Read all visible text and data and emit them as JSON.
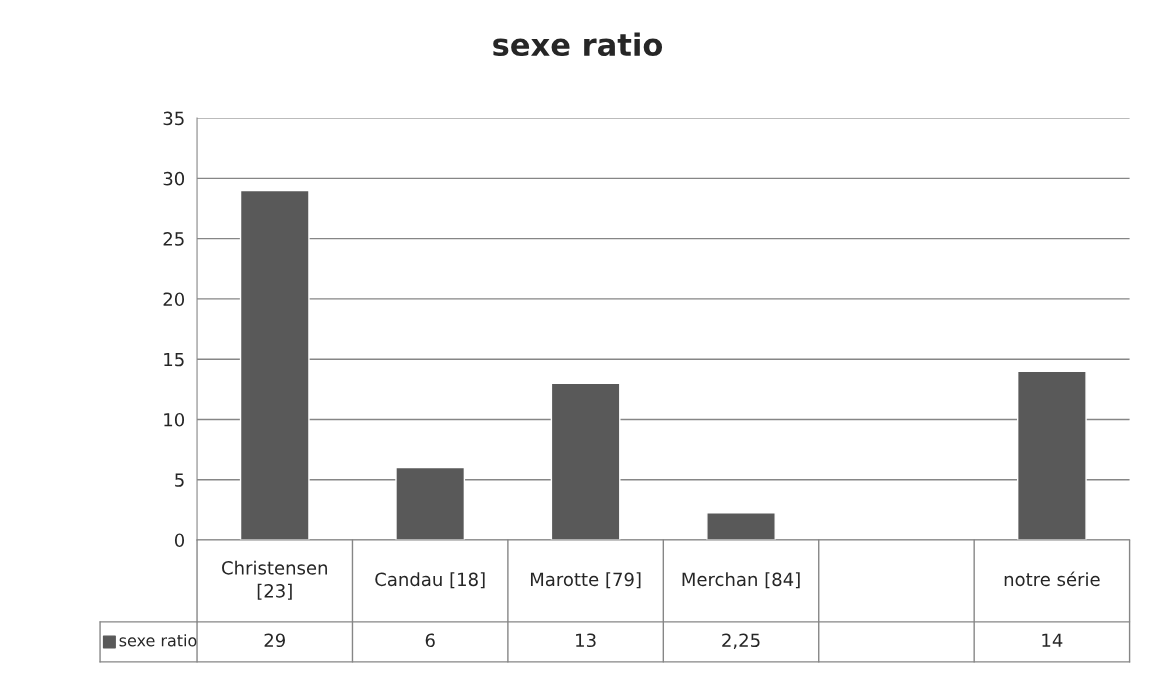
{
  "chart_data": {
    "type": "bar",
    "title": "sexe ratio",
    "categories": [
      "Christensen [23]",
      "Candau [18]",
      "Marotte [79]",
      "Merchan [84]",
      null,
      "notre série"
    ],
    "series": [
      {
        "name": "sexe ratio",
        "color": "#595959",
        "values": [
          29,
          6,
          13,
          2.25,
          null,
          14
        ],
        "value_labels": [
          "29",
          "6",
          "13",
          "2,25",
          null,
          "14"
        ]
      }
    ],
    "ylim": [
      0,
      35
    ],
    "yticks": [
      0,
      5,
      10,
      15,
      20,
      25,
      30,
      35
    ],
    "grid": "y",
    "legend": "bottom left"
  }
}
